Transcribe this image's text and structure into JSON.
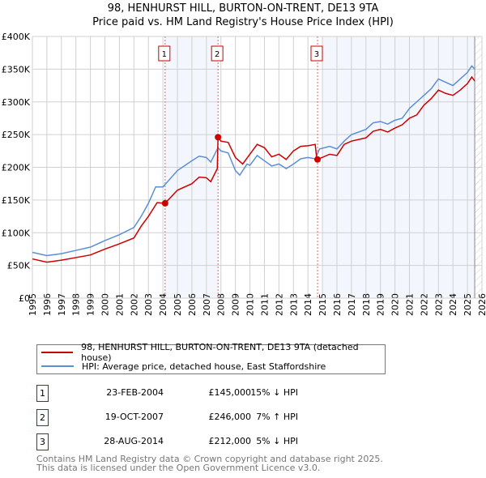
{
  "chart_data": {
    "type": "line",
    "title": "98, HENHURST HILL, BURTON-ON-TRENT, DE13 9TA",
    "subtitle": "Price paid vs. HM Land Registry's House Price Index (HPI)",
    "xlim": [
      1995,
      2026
    ],
    "ylim": [
      0,
      400000
    ],
    "yticks": [
      {
        "v": 0,
        "label": "£0"
      },
      {
        "v": 50000,
        "label": "£50K"
      },
      {
        "v": 100000,
        "label": "£100K"
      },
      {
        "v": 150000,
        "label": "£150K"
      },
      {
        "v": 200000,
        "label": "£200K"
      },
      {
        "v": 250000,
        "label": "£250K"
      },
      {
        "v": 300000,
        "label": "£300K"
      },
      {
        "v": 350000,
        "label": "£350K"
      },
      {
        "v": 400000,
        "label": "£400K"
      }
    ],
    "xticks": [
      "1995",
      "1996",
      "1997",
      "1998",
      "1999",
      "2000",
      "2001",
      "2002",
      "2003",
      "2004",
      "2005",
      "2006",
      "2007",
      "2008",
      "2009",
      "2010",
      "2011",
      "2012",
      "2013",
      "2014",
      "2015",
      "2016",
      "2017",
      "2018",
      "2019",
      "2020",
      "2021",
      "2022",
      "2023",
      "2024",
      "2025",
      "2026"
    ],
    "series": [
      {
        "name": "98, HENHURST HILL, BURTON-ON-TRENT, DE13 9TA (detached house)",
        "color": "#cc0000",
        "x": [
          1995,
          1996,
          1997,
          1998,
          1999,
          2000,
          2001,
          2002,
          2002.5,
          2003,
          2003.6,
          2004.15,
          2005,
          2006,
          2006.5,
          2007,
          2007.3,
          2007.75,
          2007.8,
          2008,
          2008.5,
          2009,
          2009.5,
          2010,
          2010.5,
          2011,
          2011.5,
          2012,
          2012.5,
          2013,
          2013.5,
          2014,
          2014.5,
          2014.6,
          2014.66,
          2015.5,
          2016,
          2016.5,
          2017,
          2018,
          2018.5,
          2019,
          2019.5,
          2020,
          2020.5,
          2021,
          2021.5,
          2022,
          2022.5,
          2023,
          2023.5,
          2024,
          2024.5,
          2025,
          2025.3,
          2025.5
        ],
        "y": [
          60000,
          55000,
          58000,
          62000,
          66000,
          75000,
          83000,
          92000,
          110000,
          125000,
          146000,
          145000,
          165000,
          175000,
          185000,
          184000,
          178000,
          198000,
          246000,
          240000,
          238000,
          215000,
          205000,
          220000,
          235000,
          230000,
          216000,
          220000,
          212000,
          225000,
          232000,
          233000,
          235000,
          215000,
          212000,
          220000,
          218000,
          235000,
          240000,
          245000,
          255000,
          258000,
          254000,
          260000,
          265000,
          275000,
          280000,
          295000,
          305000,
          318000,
          313000,
          310000,
          318000,
          328000,
          338000,
          332000
        ]
      },
      {
        "name": "HPI: Average price, detached house, East Staffordshire",
        "color": "#5b8fd4",
        "x": [
          1995,
          1996,
          1997,
          1998,
          1999,
          2000,
          2001,
          2002,
          2002.5,
          2003,
          2003.5,
          2004,
          2005,
          2006,
          2006.5,
          2007,
          2007.3,
          2007.8,
          2008,
          2008.5,
          2009,
          2009.3,
          2009.8,
          2010,
          2010.5,
          2011,
          2011.5,
          2012,
          2012.5,
          2013,
          2013.5,
          2014,
          2014.5,
          2014.8,
          2015.5,
          2016,
          2016.5,
          2017,
          2018,
          2018.5,
          2019,
          2019.5,
          2020,
          2020.5,
          2021,
          2021.5,
          2022,
          2022.5,
          2023,
          2023.5,
          2024,
          2024.5,
          2025,
          2025.3,
          2025.5
        ],
        "y": [
          70000,
          65000,
          68000,
          73000,
          78000,
          88000,
          97000,
          108000,
          125000,
          145000,
          170000,
          170000,
          195000,
          210000,
          217000,
          215000,
          208000,
          230000,
          225000,
          222000,
          195000,
          188000,
          205000,
          203000,
          218000,
          210000,
          202000,
          205000,
          198000,
          205000,
          213000,
          215000,
          213000,
          228000,
          232000,
          228000,
          240000,
          250000,
          258000,
          268000,
          270000,
          266000,
          272000,
          275000,
          290000,
          300000,
          310000,
          320000,
          335000,
          330000,
          325000,
          335000,
          345000,
          355000,
          350000
        ]
      }
    ],
    "sales": [
      {
        "label": "1",
        "x": 2004.15,
        "date": "23-FEB-2004",
        "price": 145000,
        "price_label": "£145,000",
        "hpi": "15% ↓ HPI"
      },
      {
        "label": "2",
        "x": 2007.8,
        "date": "19-OCT-2007",
        "price": 246000,
        "price_label": "£246,000",
        "hpi": "7% ↑ HPI"
      },
      {
        "label": "3",
        "x": 2014.66,
        "date": "28-AUG-2014",
        "price": 212000,
        "price_label": "£212,000",
        "hpi": "5% ↓ HPI"
      }
    ],
    "shaded": [
      [
        2004.15,
        2007.8
      ],
      [
        2015,
        2025.5
      ]
    ],
    "data_end": 2025.5
  },
  "footer": [
    "Contains HM Land Registry data © Crown copyright and database right 2025.",
    "This data is licensed under the Open Government Licence v3.0."
  ]
}
